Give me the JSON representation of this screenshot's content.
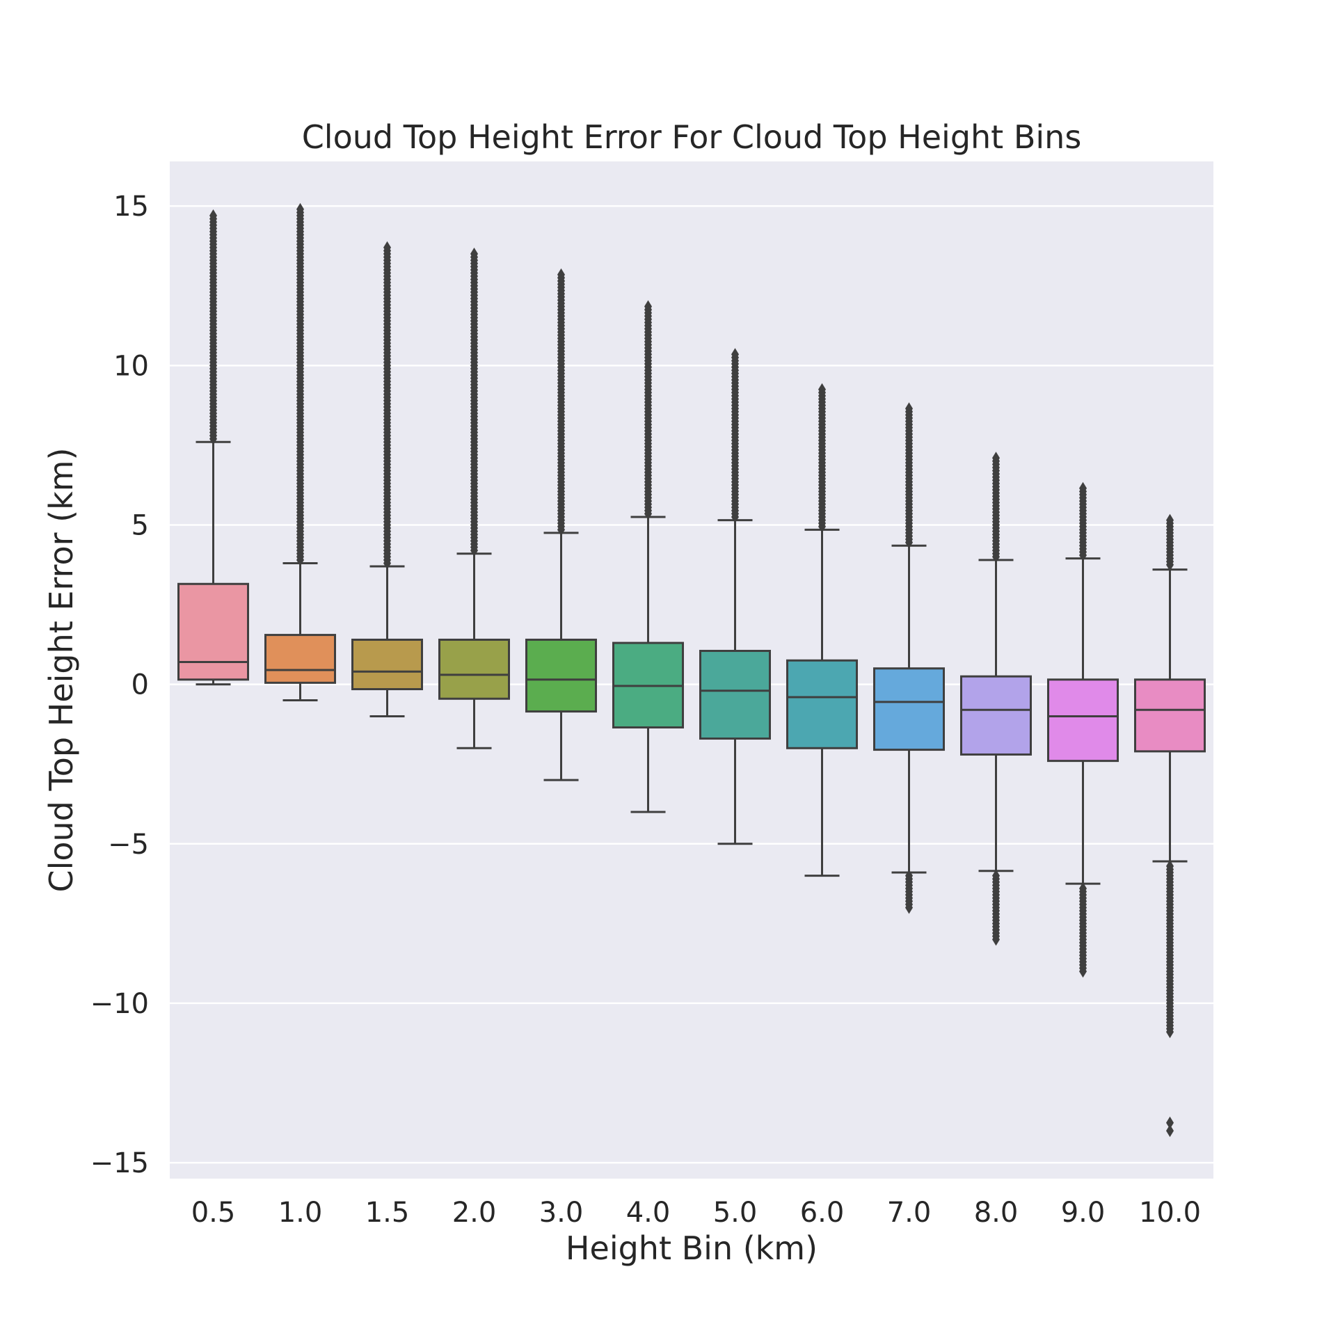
{
  "chart_data": {
    "type": "box",
    "title": "Cloud Top Height Error For Cloud Top Height Bins",
    "xlabel": "Height Bin (km)",
    "ylabel": "Cloud Top Height Error (km)",
    "ylim": [
      -15.5,
      16.4
    ],
    "yticks": [
      15,
      10,
      5,
      0,
      -5,
      -10,
      -15
    ],
    "ytick_labels": [
      "15",
      "10",
      "5",
      "0",
      "−5",
      "−10",
      "−15"
    ],
    "grid": true,
    "categories": [
      "0.5",
      "1.0",
      "1.5",
      "2.0",
      "3.0",
      "4.0",
      "5.0",
      "6.0",
      "7.0",
      "8.0",
      "9.0",
      "10.0"
    ],
    "colors": [
      "#ea96a3",
      "#e0905a",
      "#b89a4d",
      "#98a14a",
      "#5bad4f",
      "#4bac82",
      "#4ba89a",
      "#4ca7b1",
      "#65a9dc",
      "#b2a3ea",
      "#e08ae9",
      "#e88cc3"
    ],
    "boxes": [
      {
        "whislo": 0.0,
        "q1": 0.15,
        "med": 0.7,
        "q3": 3.15,
        "whishi": 7.6,
        "fliers_hi": [
          7.7,
          14.7
        ],
        "fliers_lo": null
      },
      {
        "whislo": -0.5,
        "q1": 0.05,
        "med": 0.45,
        "q3": 1.55,
        "whishi": 3.8,
        "fliers_hi": [
          3.9,
          14.9
        ],
        "fliers_lo": null
      },
      {
        "whislo": -1.0,
        "q1": -0.15,
        "med": 0.4,
        "q3": 1.4,
        "whishi": 3.7,
        "fliers_hi": [
          3.8,
          13.7
        ],
        "fliers_lo": null
      },
      {
        "whislo": -2.0,
        "q1": -0.45,
        "med": 0.3,
        "q3": 1.4,
        "whishi": 4.1,
        "fliers_hi": [
          4.2,
          13.5
        ],
        "fliers_lo": null
      },
      {
        "whislo": -3.0,
        "q1": -0.85,
        "med": 0.15,
        "q3": 1.4,
        "whishi": 4.75,
        "fliers_hi": [
          4.85,
          12.9
        ],
        "fliers_lo": null
      },
      {
        "whislo": -4.0,
        "q1": -1.35,
        "med": -0.05,
        "q3": 1.3,
        "whishi": 5.25,
        "fliers_hi": [
          5.35,
          11.9
        ],
        "fliers_lo": null
      },
      {
        "whislo": -5.0,
        "q1": -1.7,
        "med": -0.2,
        "q3": 1.05,
        "whishi": 5.15,
        "fliers_hi": [
          5.25,
          10.4
        ],
        "fliers_lo": null
      },
      {
        "whislo": -6.0,
        "q1": -2.0,
        "med": -0.4,
        "q3": 0.75,
        "whishi": 4.85,
        "fliers_hi": [
          4.95,
          9.3
        ],
        "fliers_lo": null
      },
      {
        "whislo": -5.9,
        "q1": -2.05,
        "med": -0.55,
        "q3": 0.5,
        "whishi": 4.35,
        "fliers_hi": [
          4.45,
          8.7
        ],
        "fliers_lo": [
          -7.0,
          -6.0
        ]
      },
      {
        "whislo": -5.85,
        "q1": -2.2,
        "med": -0.8,
        "q3": 0.25,
        "whishi": 3.9,
        "fliers_hi": [
          4.0,
          7.1
        ],
        "fliers_lo": [
          -8.0,
          -5.95
        ]
      },
      {
        "whislo": -6.25,
        "q1": -2.4,
        "med": -1.0,
        "q3": 0.15,
        "whishi": 3.95,
        "fliers_hi": [
          4.05,
          6.2
        ],
        "fliers_lo": [
          -9.0,
          -6.35
        ]
      },
      {
        "whislo": -5.55,
        "q1": -2.1,
        "med": -0.8,
        "q3": 0.15,
        "whishi": 3.6,
        "fliers_hi": [
          3.75,
          5.2
        ],
        "fliers_lo": [
          -10.9,
          -5.65
        ],
        "extra_fliers": [
          -13.75,
          -14.0
        ]
      }
    ]
  }
}
